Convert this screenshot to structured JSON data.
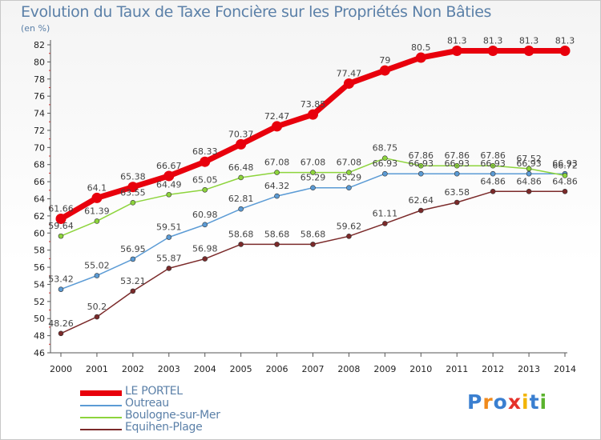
{
  "title": "Evolution du Taux de Taxe Foncière sur les Propriétés Non Bâties",
  "unit": "(en %)",
  "logo": {
    "text": "Proxiti",
    "colors": [
      "#3a7fd0",
      "#f08a1c",
      "#3a7fd0",
      "#e5312a",
      "#f2b400",
      "#3a7fd0",
      "#5bb32e"
    ]
  },
  "chart_data": {
    "type": "line",
    "title": "Evolution du Taux de Taxe Foncière sur les Propriétés Non Bâties",
    "ylabel": "(en %)",
    "x": [
      2000,
      2001,
      2002,
      2003,
      2004,
      2005,
      2006,
      2007,
      2008,
      2009,
      2010,
      2011,
      2012,
      2013,
      2014
    ],
    "ylim": [
      46,
      82
    ],
    "yticks": [
      46,
      48,
      50,
      52,
      54,
      56,
      58,
      60,
      62,
      64,
      66,
      68,
      70,
      72,
      74,
      76,
      78,
      80,
      82
    ],
    "grid": false,
    "legend": "bottom-left",
    "series": [
      {
        "name": "LE PORTEL",
        "color": "#e8000c",
        "values": [
          61.66,
          64.1,
          65.38,
          66.67,
          68.33,
          70.37,
          72.47,
          73.85,
          77.47,
          79,
          80.5,
          81.3,
          81.3,
          81.3,
          81.3
        ],
        "labels": [
          "61.66",
          "64.1",
          "65.38",
          "66.67",
          "68.33",
          "70.37",
          "72.47",
          "73.85",
          "77.47",
          "79",
          "80.5",
          "81.3",
          "81.3",
          "81.3",
          "81.3"
        ]
      },
      {
        "name": "Outreau",
        "color": "#5b9bd5",
        "values": [
          53.42,
          55.02,
          56.95,
          59.51,
          60.98,
          62.81,
          64.32,
          65.29,
          65.29,
          66.93,
          66.93,
          66.93,
          66.93,
          66.93,
          66.93
        ],
        "labels": [
          "53.42",
          "55.02",
          "56.95",
          "59.51",
          "60.98",
          "62.81",
          "64.32",
          "65.29",
          "65.29",
          "66.93",
          "66.93",
          "66.93",
          "66.93",
          "66.93",
          "66.93"
        ]
      },
      {
        "name": "Boulogne-sur-Mer",
        "color": "#8dd43c",
        "values": [
          59.64,
          61.39,
          63.55,
          64.49,
          65.05,
          66.48,
          67.08,
          67.08,
          67.08,
          68.75,
          67.86,
          67.86,
          67.86,
          67.52,
          66.72
        ],
        "labels": [
          "59.64",
          "61.39",
          "63.55",
          "64.49",
          "65.05",
          "66.48",
          "67.08",
          "67.08",
          "67.08",
          "68.75",
          "67.86",
          "67.86",
          "67.86",
          "67.52",
          "66.72"
        ]
      },
      {
        "name": "Equihen-Plage",
        "color": "#7b2a2a",
        "values": [
          48.26,
          50.2,
          53.21,
          55.87,
          56.98,
          58.68,
          58.68,
          58.68,
          59.62,
          61.11,
          62.64,
          63.58,
          64.86,
          64.86,
          64.86
        ],
        "labels": [
          "48.26",
          "50.2",
          "53.21",
          "55.87",
          "56.98",
          "58.68",
          "58.68",
          "58.68",
          "59.62",
          "61.11",
          "62.64",
          "63.58",
          "64.86",
          "64.86",
          "64.86"
        ]
      }
    ]
  }
}
